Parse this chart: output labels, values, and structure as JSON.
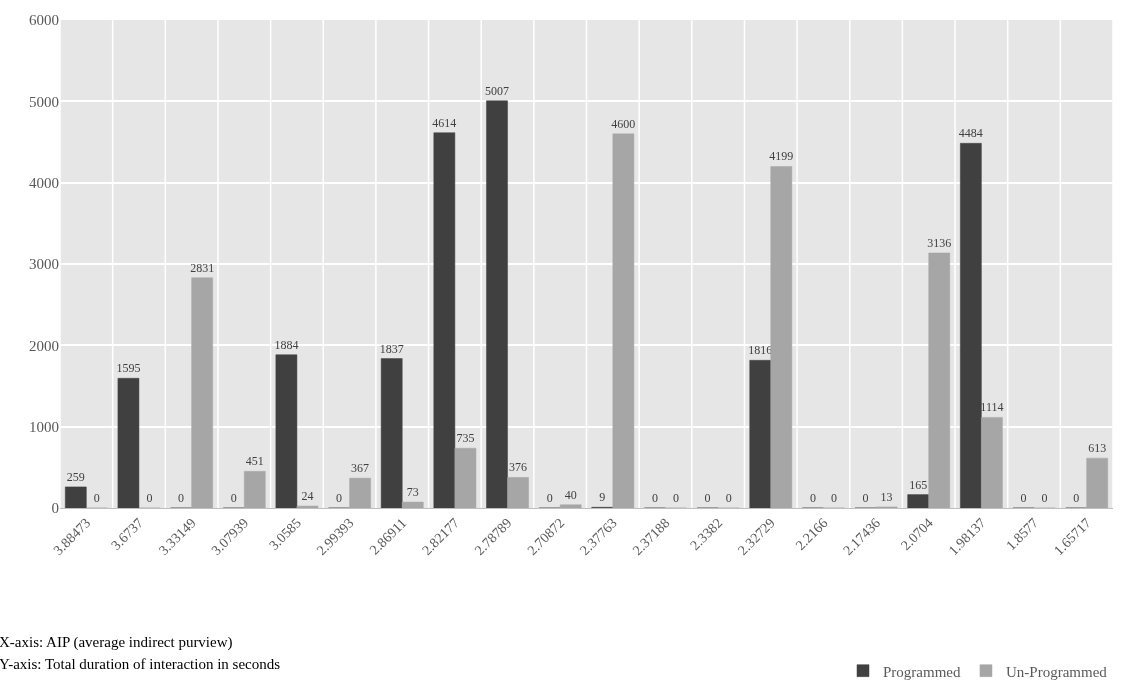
{
  "chart_data": {
    "type": "bar",
    "categories": [
      "3.88473",
      "3.6737",
      "3.33149",
      "3.07939",
      "3.0585",
      "2.99393",
      "2.86911",
      "2.82177",
      "2.78789",
      "2.70872",
      "2.37763",
      "2.37188",
      "2.3382",
      "2.32729",
      "2.2166",
      "2.17436",
      "2.0704",
      "1.98137",
      "1.8577",
      "1.65717"
    ],
    "series": [
      {
        "name": "Programmed",
        "color": "#404040",
        "values": [
          259,
          1595,
          0,
          0,
          1884,
          0,
          1837,
          4614,
          5007,
          0,
          9,
          0,
          0,
          1816,
          0,
          0,
          165,
          4484,
          0,
          0
        ]
      },
      {
        "name": "Un-Programmed",
        "color": "#a6a6a6",
        "values": [
          0,
          0,
          2831,
          451,
          24,
          367,
          73,
          735,
          376,
          40,
          4600,
          0,
          0,
          4199,
          0,
          13,
          3136,
          1114,
          0,
          613
        ]
      }
    ],
    "ylim": [
      0,
      6000
    ],
    "yticks": [
      0,
      1000,
      2000,
      3000,
      4000,
      5000,
      6000
    ],
    "grid": true,
    "legend": "bottom right",
    "data_labels": true,
    "annotations": [
      "X-axis: AIP (average indirect purview)",
      "Y-axis: Total duration of interaction in seconds"
    ]
  }
}
